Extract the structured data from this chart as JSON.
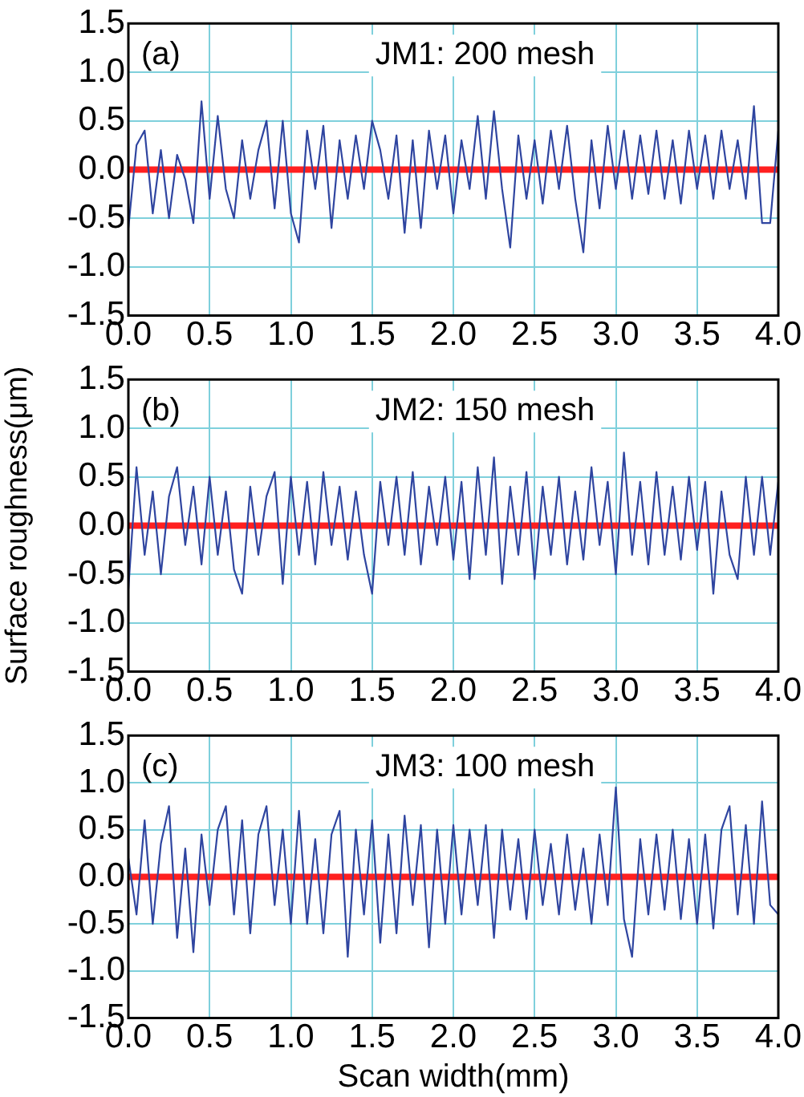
{
  "chart_data": [
    {
      "type": "line",
      "annotations": [
        "(a)",
        "JM1: 200 mesh"
      ],
      "x": [
        0,
        0.05,
        0.1,
        0.15,
        0.2,
        0.25,
        0.3,
        0.35,
        0.4,
        0.45,
        0.5,
        0.55,
        0.6,
        0.65,
        0.7,
        0.75,
        0.8,
        0.85,
        0.9,
        0.95,
        1,
        1.05,
        1.1,
        1.15,
        1.2,
        1.25,
        1.3,
        1.35,
        1.4,
        1.45,
        1.5,
        1.55,
        1.6,
        1.65,
        1.7,
        1.75,
        1.8,
        1.85,
        1.9,
        1.95,
        2,
        2.05,
        2.1,
        2.15,
        2.2,
        2.25,
        2.3,
        2.35,
        2.4,
        2.45,
        2.5,
        2.55,
        2.6,
        2.65,
        2.7,
        2.75,
        2.8,
        2.85,
        2.9,
        2.95,
        3,
        3.05,
        3.1,
        3.15,
        3.2,
        3.25,
        3.3,
        3.35,
        3.4,
        3.45,
        3.5,
        3.55,
        3.6,
        3.65,
        3.7,
        3.75,
        3.8,
        3.85,
        3.9,
        3.95,
        4
      ],
      "series": [
        {
          "color": "#2f45a0",
          "values": [
            -0.6,
            0.25,
            0.4,
            -0.45,
            0.2,
            -0.5,
            0.15,
            -0.1,
            -0.55,
            0.7,
            -0.3,
            0.55,
            -0.2,
            -0.5,
            0.3,
            -0.3,
            0.2,
            0.5,
            -0.4,
            0.5,
            -0.45,
            -0.75,
            0.4,
            -0.2,
            0.45,
            -0.6,
            0.3,
            -0.3,
            0.35,
            -0.2,
            0.5,
            0.2,
            -0.3,
            0.35,
            -0.65,
            0.3,
            -0.6,
            0.4,
            -0.2,
            0.35,
            -0.45,
            0.3,
            -0.2,
            0.55,
            -0.3,
            0.6,
            -0.2,
            -0.8,
            0.35,
            -0.3,
            0.3,
            -0.35,
            0.4,
            -0.2,
            0.45,
            -0.3,
            -0.85,
            0.3,
            -0.4,
            0.45,
            -0.2,
            0.4,
            -0.3,
            0.35,
            -0.25,
            0.4,
            -0.3,
            0.3,
            -0.35,
            0.4,
            -0.2,
            0.35,
            -0.3,
            0.4,
            -0.2,
            0.3,
            -0.3,
            0.65,
            -0.55,
            -0.55,
            0.4
          ]
        }
      ],
      "ref_lines": [
        {
          "axis": "y",
          "value": 0,
          "color": "#ff2020"
        }
      ],
      "xlim": [
        0,
        4
      ],
      "ylim": [
        -1.5,
        1.5
      ],
      "xticks": [
        {
          "value": 0,
          "label": "0.0"
        },
        {
          "value": 0.5,
          "label": "0.5"
        },
        {
          "value": 1,
          "label": "1.0"
        },
        {
          "value": 1.5,
          "label": "1.5"
        },
        {
          "value": 2,
          "label": "2.0"
        },
        {
          "value": 2.5,
          "label": "2.5"
        },
        {
          "value": 3,
          "label": "3.0"
        },
        {
          "value": 3.5,
          "label": "3.5"
        },
        {
          "value": 4,
          "label": "4.0"
        }
      ],
      "yticks": [
        -1.5,
        {
          "value": -1,
          "label": "-1.0"
        },
        -0.5,
        {
          "value": 0,
          "label": "0.0"
        },
        0.5,
        {
          "value": 1,
          "label": "1.0"
        },
        1.5
      ],
      "grid": true,
      "legend": false,
      "marker": "none",
      "line_style": "solid"
    },
    {
      "type": "line",
      "ylabel": "Surface roughness(μm)",
      "annotations": [
        "(b)",
        "JM2: 150 mesh"
      ],
      "x": [
        0,
        0.05,
        0.1,
        0.15,
        0.2,
        0.25,
        0.3,
        0.35,
        0.4,
        0.45,
        0.5,
        0.55,
        0.6,
        0.65,
        0.7,
        0.75,
        0.8,
        0.85,
        0.9,
        0.95,
        1,
        1.05,
        1.1,
        1.15,
        1.2,
        1.25,
        1.3,
        1.35,
        1.4,
        1.45,
        1.5,
        1.55,
        1.6,
        1.65,
        1.7,
        1.75,
        1.8,
        1.85,
        1.9,
        1.95,
        2,
        2.05,
        2.1,
        2.15,
        2.2,
        2.25,
        2.3,
        2.35,
        2.4,
        2.45,
        2.5,
        2.55,
        2.6,
        2.65,
        2.7,
        2.75,
        2.8,
        2.85,
        2.9,
        2.95,
        3,
        3.05,
        3.1,
        3.15,
        3.2,
        3.25,
        3.3,
        3.35,
        3.4,
        3.45,
        3.5,
        3.55,
        3.6,
        3.65,
        3.7,
        3.75,
        3.8,
        3.85,
        3.9,
        3.95,
        4
      ],
      "series": [
        {
          "color": "#2f45a0",
          "values": [
            -0.65,
            0.6,
            -0.3,
            0.35,
            -0.5,
            0.3,
            0.6,
            -0.2,
            0.4,
            -0.4,
            0.5,
            -0.3,
            0.35,
            -0.45,
            -0.7,
            0.4,
            -0.3,
            0.3,
            0.55,
            -0.6,
            0.5,
            -0.3,
            0.45,
            -0.4,
            0.55,
            -0.2,
            0.4,
            -0.35,
            0.35,
            -0.3,
            -0.7,
            0.45,
            -0.2,
            0.5,
            -0.3,
            0.55,
            -0.4,
            0.4,
            -0.2,
            0.5,
            -0.35,
            0.45,
            -0.55,
            0.6,
            -0.3,
            0.7,
            -0.6,
            0.4,
            -0.3,
            0.55,
            -0.55,
            0.4,
            -0.3,
            0.5,
            -0.4,
            0.35,
            -0.35,
            0.6,
            -0.2,
            0.45,
            -0.5,
            0.75,
            -0.3,
            0.45,
            -0.4,
            0.55,
            -0.3,
            0.4,
            -0.35,
            0.5,
            -0.25,
            0.45,
            -0.7,
            0.35,
            -0.3,
            -0.55,
            0.5,
            -0.3,
            0.5,
            -0.3,
            0.45
          ]
        }
      ],
      "ref_lines": [
        {
          "axis": "y",
          "value": 0,
          "color": "#ff2020"
        }
      ],
      "xlim": [
        0,
        4
      ],
      "ylim": [
        -1.5,
        1.5
      ],
      "xticks": [
        {
          "value": 0,
          "label": "0.0"
        },
        {
          "value": 0.5,
          "label": "0.5"
        },
        {
          "value": 1,
          "label": "1.0"
        },
        {
          "value": 1.5,
          "label": "1.5"
        },
        {
          "value": 2,
          "label": "2.0"
        },
        {
          "value": 2.5,
          "label": "2.5"
        },
        {
          "value": 3,
          "label": "3.0"
        },
        {
          "value": 3.5,
          "label": "3.5"
        },
        {
          "value": 4,
          "label": "4.0"
        }
      ],
      "yticks": [
        -1.5,
        {
          "value": -1,
          "label": "-1.0"
        },
        -0.5,
        {
          "value": 0,
          "label": "0.0"
        },
        0.5,
        {
          "value": 1,
          "label": "1.0"
        },
        1.5
      ],
      "grid": true,
      "legend": false,
      "marker": "none",
      "line_style": "solid"
    },
    {
      "type": "line",
      "xlabel": "Scan width(mm)",
      "annotations": [
        "(c)",
        "JM3: 100 mesh"
      ],
      "x": [
        0,
        0.05,
        0.1,
        0.15,
        0.2,
        0.25,
        0.3,
        0.35,
        0.4,
        0.45,
        0.5,
        0.55,
        0.6,
        0.65,
        0.7,
        0.75,
        0.8,
        0.85,
        0.9,
        0.95,
        1,
        1.05,
        1.1,
        1.15,
        1.2,
        1.25,
        1.3,
        1.35,
        1.4,
        1.45,
        1.5,
        1.55,
        1.6,
        1.65,
        1.7,
        1.75,
        1.8,
        1.85,
        1.9,
        1.95,
        2,
        2.05,
        2.1,
        2.15,
        2.2,
        2.25,
        2.3,
        2.35,
        2.4,
        2.45,
        2.5,
        2.55,
        2.6,
        2.65,
        2.7,
        2.75,
        2.8,
        2.85,
        2.9,
        2.95,
        3,
        3.05,
        3.1,
        3.15,
        3.2,
        3.25,
        3.3,
        3.35,
        3.4,
        3.45,
        3.5,
        3.55,
        3.6,
        3.65,
        3.7,
        3.75,
        3.8,
        3.85,
        3.9,
        3.95,
        4
      ],
      "series": [
        {
          "color": "#2f45a0",
          "values": [
            0.2,
            -0.4,
            0.6,
            -0.5,
            0.35,
            0.75,
            -0.65,
            0.3,
            -0.8,
            0.45,
            -0.3,
            0.5,
            0.75,
            -0.4,
            0.6,
            -0.6,
            0.45,
            0.75,
            -0.3,
            0.5,
            -0.5,
            0.7,
            -0.5,
            0.4,
            -0.6,
            0.45,
            0.7,
            -0.85,
            0.5,
            -0.4,
            0.6,
            -0.7,
            0.45,
            -0.6,
            0.65,
            -0.3,
            0.55,
            -0.75,
            0.5,
            -0.5,
            0.55,
            -0.4,
            0.5,
            -0.3,
            0.55,
            -0.65,
            0.5,
            -0.35,
            0.4,
            -0.45,
            0.5,
            -0.3,
            0.35,
            -0.4,
            0.45,
            -0.35,
            0.3,
            -0.5,
            0.45,
            -0.3,
            0.95,
            -0.45,
            -0.85,
            0.4,
            -0.4,
            0.45,
            -0.35,
            0.5,
            -0.45,
            0.4,
            -0.5,
            0.45,
            -0.55,
            0.5,
            0.75,
            -0.4,
            0.55,
            -0.5,
            0.8,
            -0.3,
            -0.4
          ]
        }
      ],
      "ref_lines": [
        {
          "axis": "y",
          "value": 0,
          "color": "#ff2020"
        }
      ],
      "xlim": [
        0,
        4
      ],
      "ylim": [
        -1.5,
        1.5
      ],
      "xticks": [
        {
          "value": 0,
          "label": "0.0"
        },
        {
          "value": 0.5,
          "label": "0.5"
        },
        {
          "value": 1,
          "label": "1.0"
        },
        {
          "value": 1.5,
          "label": "1.5"
        },
        {
          "value": 2,
          "label": "2.0"
        },
        {
          "value": 2.5,
          "label": "2.5"
        },
        {
          "value": 3,
          "label": "3.0"
        },
        {
          "value": 3.5,
          "label": "3.5"
        },
        {
          "value": 4,
          "label": "4.0"
        }
      ],
      "yticks": [
        -1.5,
        {
          "value": -1,
          "label": "-1.0"
        },
        -0.5,
        {
          "value": 0,
          "label": "0.0"
        },
        0.5,
        {
          "value": 1,
          "label": "1.0"
        },
        1.5
      ],
      "grid": true,
      "legend": false,
      "marker": "none",
      "line_style": "solid"
    }
  ]
}
